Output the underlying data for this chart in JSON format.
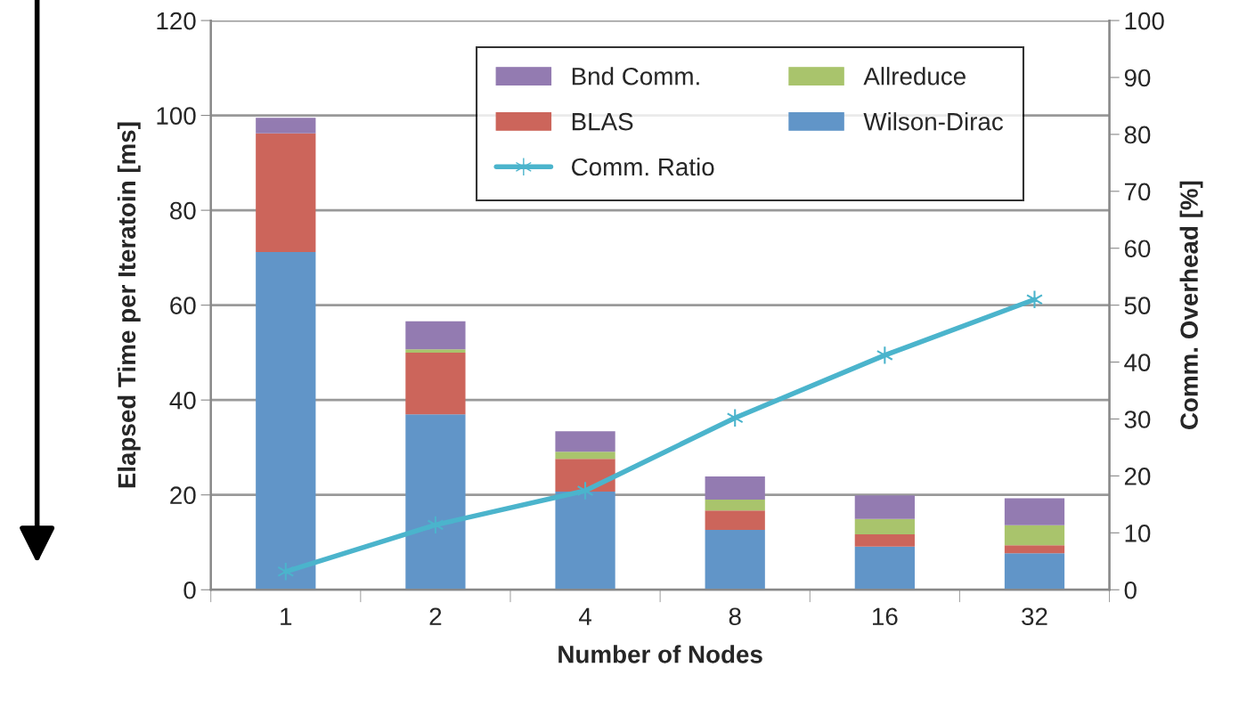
{
  "chart_data": {
    "type": "bar",
    "stacked": true,
    "categories": [
      "1",
      "2",
      "4",
      "8",
      "16",
      "32"
    ],
    "xlabel": "Number of Nodes",
    "ylabel": "Elapsed Time per Iteratoin [ms]",
    "y2label": "Comm. Overhead [%]",
    "ylim": [
      0,
      120
    ],
    "yticks": [
      0,
      20,
      40,
      60,
      80,
      100,
      120
    ],
    "y2lim": [
      0,
      100
    ],
    "y2ticks": [
      0,
      10,
      20,
      30,
      40,
      50,
      60,
      70,
      80,
      90,
      100
    ],
    "grid": "y",
    "legend": "top",
    "series": [
      {
        "name": "Wilson-Dirac",
        "color": "#6195c8",
        "values": [
          71.2,
          37.0,
          20.7,
          12.6,
          9.1,
          7.7
        ]
      },
      {
        "name": "BLAS",
        "color": "#cc655b",
        "values": [
          25.0,
          13.0,
          6.9,
          4.1,
          2.6,
          1.7
        ]
      },
      {
        "name": "Allreduce",
        "color": "#a9c46c",
        "values": [
          0,
          0.7,
          1.5,
          2.3,
          3.2,
          4.2
        ]
      },
      {
        "name": "Bnd Comm.",
        "color": "#937bb1",
        "values": [
          3.3,
          5.9,
          4.3,
          4.9,
          5.0,
          5.7
        ]
      },
      {
        "name": "Comm. Ratio",
        "color": "#4bb4cc",
        "type": "line",
        "axis": "y2",
        "marker": "cross",
        "values": [
          3.2,
          11.4,
          17.4,
          30.2,
          41.2,
          51.0
        ]
      }
    ]
  }
}
